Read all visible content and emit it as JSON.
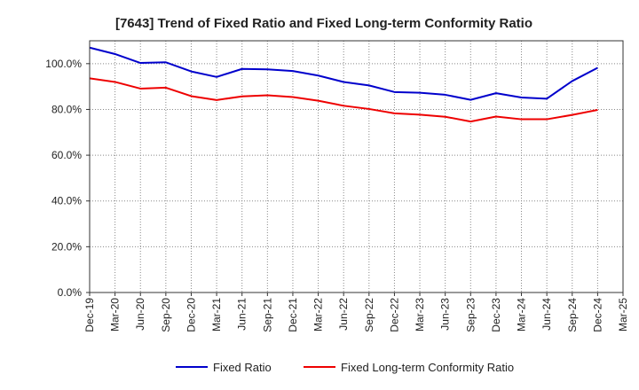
{
  "chart_data": {
    "type": "line",
    "title": "[7643]  Trend of Fixed Ratio and Fixed Long-term Conformity Ratio",
    "xlabel": "",
    "ylabel": "",
    "ylim": [
      0,
      110
    ],
    "yticks": [
      0,
      20,
      40,
      60,
      80,
      100
    ],
    "ytick_labels": [
      "0.0%",
      "20.0%",
      "40.0%",
      "60.0%",
      "80.0%",
      "100.0%"
    ],
    "x_tick_labels": [
      "Dec-19",
      "Mar-20",
      "Jun-20",
      "Sep-20",
      "Dec-20",
      "Mar-21",
      "Jun-21",
      "Sep-21",
      "Dec-21",
      "Mar-22",
      "Jun-22",
      "Sep-22",
      "Dec-22",
      "Mar-23",
      "Jun-23",
      "Sep-23",
      "Dec-23",
      "Mar-24",
      "Jun-24",
      "Sep-24",
      "Dec-24",
      "Mar-25"
    ],
    "x": [
      "Dec-19",
      "Mar-20",
      "Jun-20",
      "Sep-20",
      "Dec-20",
      "Mar-21",
      "Jun-21",
      "Sep-21",
      "Dec-21",
      "Mar-22",
      "Jun-22",
      "Sep-22",
      "Dec-22",
      "Mar-23",
      "Jun-23",
      "Sep-23",
      "Dec-23",
      "Mar-24",
      "Jun-24",
      "Sep-24",
      "Dec-24"
    ],
    "grid": true,
    "legend_position": "bottom",
    "series": [
      {
        "name": "Fixed Ratio",
        "color": "#0000cc",
        "values": [
          107.0,
          104.2,
          100.3,
          100.6,
          96.6,
          94.2,
          97.7,
          97.5,
          96.8,
          94.8,
          92.0,
          90.5,
          87.6,
          87.3,
          86.4,
          84.2,
          87.1,
          85.2,
          84.7,
          92.4,
          98.2
        ]
      },
      {
        "name": "Fixed Long-term Conformity Ratio",
        "color": "#ee0000",
        "values": [
          93.6,
          92.0,
          89.1,
          89.5,
          85.8,
          84.1,
          85.7,
          86.2,
          85.4,
          83.8,
          81.6,
          80.2,
          78.3,
          77.7,
          76.8,
          74.7,
          76.9,
          75.7,
          75.7,
          77.6,
          79.8
        ]
      }
    ]
  }
}
